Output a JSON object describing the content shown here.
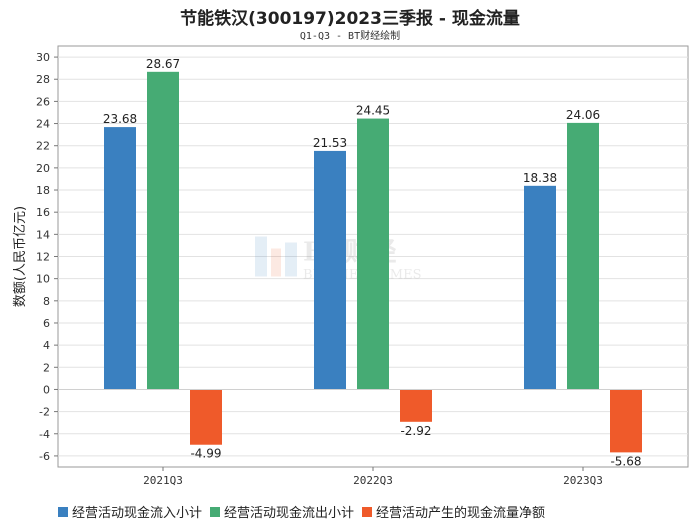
{
  "title": "节能铁汉(300197)2023三季报 - 现金流量",
  "subtitle": "Q1-Q3 - BT财经绘制",
  "watermark": {
    "brand": "BT财经",
    "sub": "BUSINESSTIMES"
  },
  "chart_data": {
    "type": "bar",
    "ylabel": "数额(人民币亿元)",
    "ylim": [
      -7,
      31
    ],
    "yticks": [
      -6,
      -4,
      -2,
      0,
      2,
      4,
      6,
      8,
      10,
      12,
      14,
      16,
      18,
      20,
      22,
      24,
      26,
      28,
      30
    ],
    "grid": true,
    "legend_position": "bottom",
    "categories": [
      "2021Q3",
      "2022Q3",
      "2023Q3"
    ],
    "series": [
      {
        "name": "经营活动现金流入小计",
        "color": "#3a80c0",
        "values": [
          23.68,
          21.53,
          18.38
        ]
      },
      {
        "name": "经营活动现金流出小计",
        "color": "#46ab74",
        "values": [
          28.67,
          24.45,
          24.06
        ]
      },
      {
        "name": "经营活动产生的现金流量净额",
        "color": "#ef5a2a",
        "values": [
          -4.99,
          -2.92,
          -5.68
        ]
      }
    ]
  }
}
